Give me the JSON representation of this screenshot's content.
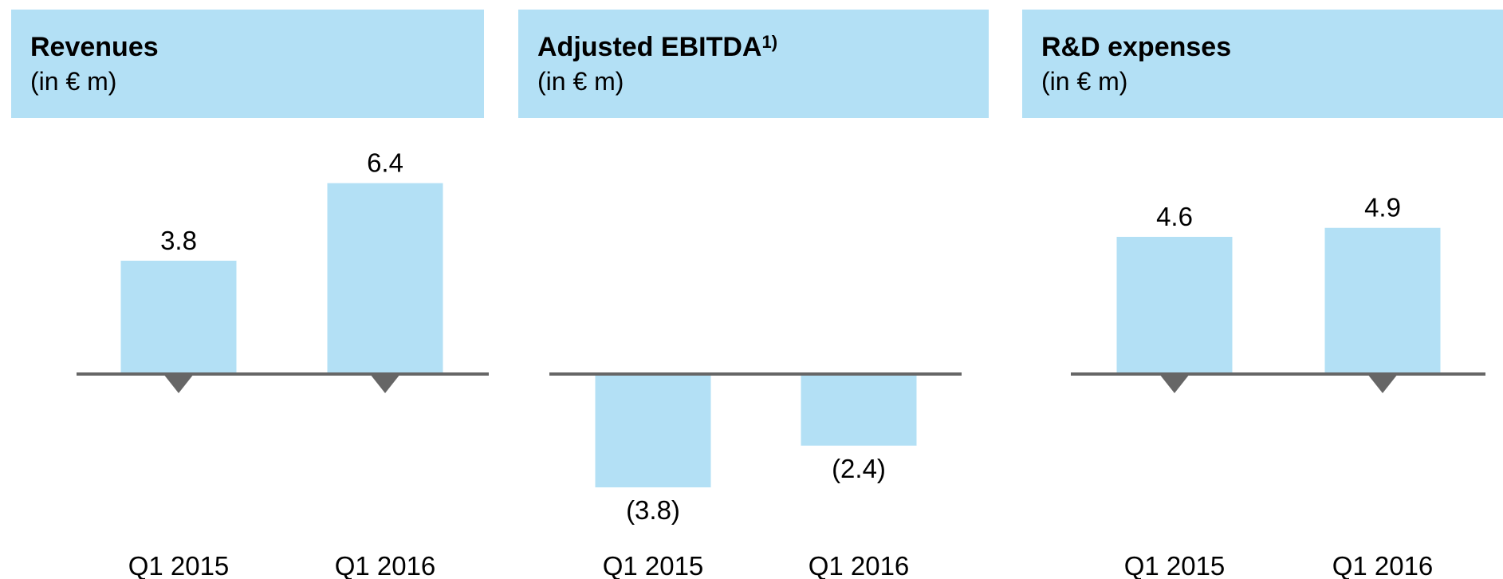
{
  "chart_data": [
    {
      "type": "bar",
      "title": "Revenues",
      "subtitle": "(in € m)",
      "categories": [
        "Q1 2015",
        "Q1 2016"
      ],
      "values": [
        3.8,
        6.4
      ],
      "color": "#b3e0f5"
    },
    {
      "type": "bar",
      "title": "Adjusted EBITDA",
      "footnote_marker": "1)",
      "subtitle": "(in € m)",
      "categories": [
        "Q1 2015",
        "Q1 2016"
      ],
      "values": [
        -3.8,
        -2.4
      ],
      "value_labels": [
        "(3.8)",
        "(2.4)"
      ],
      "color": "#b3e0f5"
    },
    {
      "type": "bar",
      "title": "R&D expenses",
      "subtitle": "(in € m)",
      "categories": [
        "Q1 2015",
        "Q1 2016"
      ],
      "values": [
        4.6,
        4.9
      ],
      "color": "#b3e0f5"
    }
  ]
}
